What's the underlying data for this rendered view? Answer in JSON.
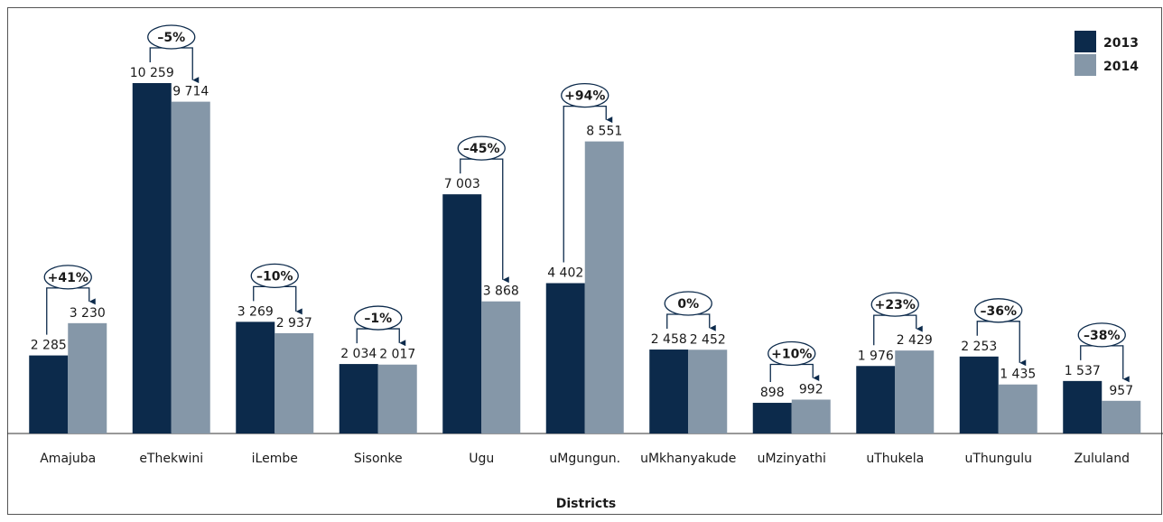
{
  "chart_data": {
    "type": "bar",
    "x_label": "Districts",
    "categories": [
      "Amajuba",
      "eThekwini",
      "iLembe",
      "Sisonke",
      "Ugu",
      "uMgungun.",
      "uMkhanyakude",
      "uMzinyathi",
      "uThukela",
      "uThungulu",
      "Zululand"
    ],
    "series": [
      {
        "name": "2013",
        "color": "#0c2a4b",
        "values": [
          2285,
          10259,
          3269,
          2034,
          7003,
          4402,
          2458,
          898,
          1976,
          2253,
          1537
        ],
        "value_labels": [
          "2 285",
          "10 259",
          "3 269",
          "2 034",
          "7 003",
          "4 402",
          "2 458",
          "898",
          "1 976",
          "2 253",
          "1 537"
        ]
      },
      {
        "name": "2014",
        "color": "#8597a8",
        "values": [
          3230,
          9714,
          2937,
          2017,
          3868,
          8551,
          2452,
          992,
          2429,
          1435,
          957
        ],
        "value_labels": [
          "3 230",
          "9 714",
          "2 937",
          "2 017",
          "3 868",
          "8 551",
          "2 452",
          "992",
          "2 429",
          "1 435",
          "957"
        ]
      }
    ],
    "annotations": [
      "+41%",
      "–5%",
      "–10%",
      "–1%",
      "–45%",
      "+94%",
      "0%",
      "+10%",
      "+23%",
      "–36%",
      "–38%"
    ],
    "legend": "top-right"
  }
}
